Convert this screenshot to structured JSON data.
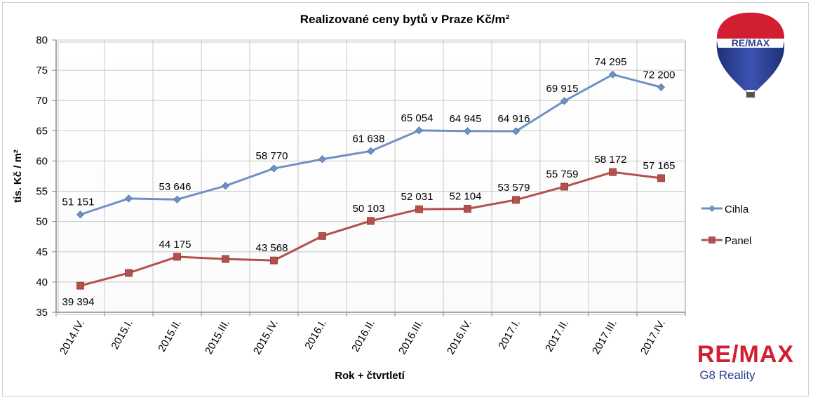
{
  "chart_data": {
    "type": "line",
    "title": "Realizované ceny bytů v Praze Kč/m²",
    "xlabel": "Rok + čtvrtletí",
    "ylabel": "tis. Kč / m²",
    "ylim": [
      35,
      80
    ],
    "yticks": [
      "35",
      "40",
      "45",
      "50",
      "55",
      "60",
      "65",
      "70",
      "75",
      "80"
    ],
    "grid": true,
    "legend_position": "right",
    "categories": [
      "2014.IV.",
      "2015.I.",
      "2015.II.",
      "2015.III.",
      "2015.IV.",
      "2016.I.",
      "2016.II.",
      "2016.III.",
      "2016.IV.",
      "2017.I.",
      "2017.II.",
      "2017.III.",
      "2017.IV."
    ],
    "series": [
      {
        "name": "Cihla",
        "color": "#6f92c4",
        "marker": "diamond",
        "values": [
          51.151,
          53.8,
          53.646,
          55.9,
          58.77,
          60.3,
          61.638,
          65.054,
          64.945,
          64.916,
          69.915,
          74.295,
          72.2
        ],
        "labels": [
          "51 151",
          "",
          "53 646",
          "",
          "58 770",
          "",
          "61 638",
          "65 054",
          "64 945",
          "64 916",
          "69 915",
          "74 295",
          "72 200"
        ]
      },
      {
        "name": "Panel",
        "color": "#b5504d",
        "marker": "square",
        "values": [
          39.394,
          41.5,
          44.175,
          43.8,
          43.568,
          47.6,
          50.103,
          52.031,
          52.104,
          53.579,
          55.759,
          58.172,
          57.165
        ],
        "labels": [
          "39 394",
          "",
          "44 175",
          "",
          "43 568",
          "",
          "50 103",
          "52 031",
          "52 104",
          "53 579",
          "55 759",
          "58 172",
          "57 165"
        ]
      }
    ]
  },
  "branding": {
    "balloon_text": "RE/MAX",
    "logo_text": "RE/MAX",
    "logo_subtitle": "G8 Reality",
    "colors": {
      "red": "#d11f31",
      "blue": "#2a3f8f"
    }
  }
}
